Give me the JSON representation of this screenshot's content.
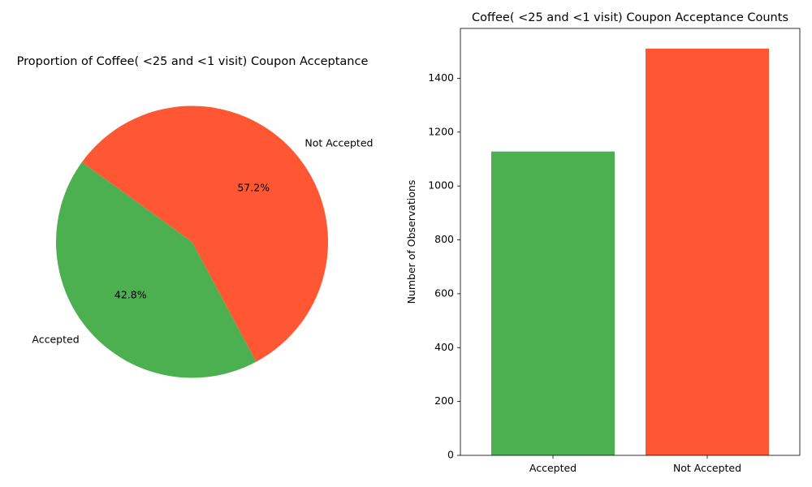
{
  "chart_data": [
    {
      "type": "pie",
      "title": "Proportion of Coffee( <25 and <1 visit) Coupon Acceptance",
      "categories": [
        "Accepted",
        "Not Accepted"
      ],
      "values": [
        42.8,
        57.2
      ],
      "value_labels": [
        "42.8%",
        "57.2%"
      ],
      "colors": [
        "#4CAF50",
        "#FF5733"
      ]
    },
    {
      "type": "bar",
      "title": "Coffee( <25 and <1 visit) Coupon Acceptance Counts",
      "xlabel": "",
      "ylabel": "Number of Observations",
      "categories": [
        "Accepted",
        "Not Accepted"
      ],
      "values": [
        1128,
        1510
      ],
      "colors": [
        "#4CAF50",
        "#FF5733"
      ],
      "ylim": [
        0,
        1585
      ],
      "yticks": [
        0,
        200,
        400,
        600,
        800,
        1000,
        1200,
        1400
      ],
      "grid": false
    }
  ]
}
